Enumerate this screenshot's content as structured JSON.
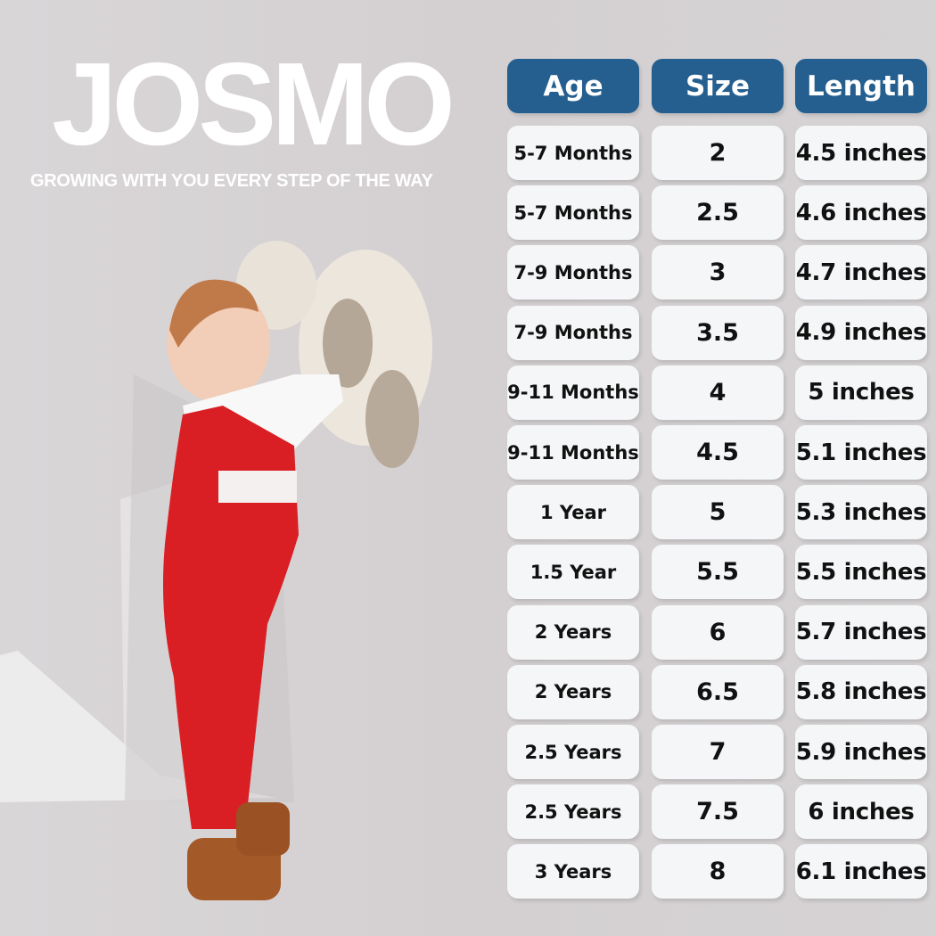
{
  "brand": {
    "logo": "JOSMO",
    "tagline": "GROWING WITH YOU EVERY STEP OF THE WAY"
  },
  "colors": {
    "header": "#245f8f",
    "cell": "#f4f6f7",
    "background": "#d6d3d5"
  },
  "table": {
    "headers": [
      "Age",
      "Size",
      "Length"
    ],
    "rows": [
      [
        "5-7 Months",
        "2",
        "4.5 inches"
      ],
      [
        "5-7 Months",
        "2.5",
        "4.6 inches"
      ],
      [
        "7-9 Months",
        "3",
        "4.7 inches"
      ],
      [
        "7-9 Months",
        "3.5",
        "4.9 inches"
      ],
      [
        "9-11 Months",
        "4",
        "5 inches"
      ],
      [
        "9-11 Months",
        "4.5",
        "5.1 inches"
      ],
      [
        "1 Year",
        "5",
        "5.3 inches"
      ],
      [
        "1.5 Year",
        "5.5",
        "5.5 inches"
      ],
      [
        "2 Years",
        "6",
        "5.7 inches"
      ],
      [
        "2 Years",
        "6.5",
        "5.8 inches"
      ],
      [
        "2.5 Years",
        "7",
        "5.9 inches"
      ],
      [
        "2.5 Years",
        "7.5",
        "6 inches"
      ],
      [
        "3 Years",
        "8",
        "6.1 inches"
      ]
    ]
  }
}
